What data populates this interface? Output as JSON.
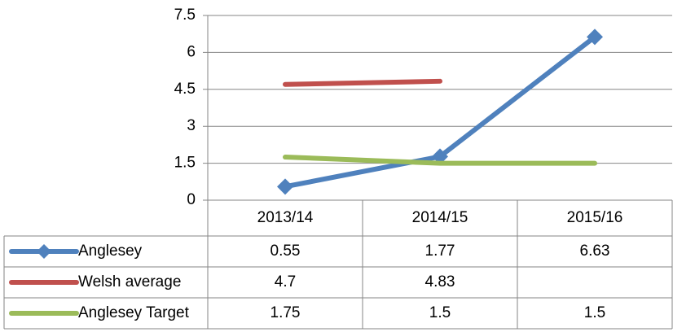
{
  "chart_data": {
    "type": "line",
    "categories": [
      "2013/14",
      "2014/15",
      "2015/16"
    ],
    "series": [
      {
        "name": "Anglesey",
        "color": "#4f81bd",
        "marker": "diamond",
        "values": [
          0.55,
          1.77,
          6.63
        ]
      },
      {
        "name": "Welsh average",
        "color": "#c0504d",
        "values": [
          4.7,
          4.83,
          null
        ]
      },
      {
        "name": "Anglesey Target",
        "color": "#9bbb59",
        "values": [
          1.75,
          1.5,
          1.5
        ]
      }
    ],
    "ylim": [
      0,
      7.5
    ],
    "yticks": [
      0,
      1.5,
      3,
      4.5,
      6,
      7.5
    ],
    "grid": true,
    "data_table": true
  }
}
